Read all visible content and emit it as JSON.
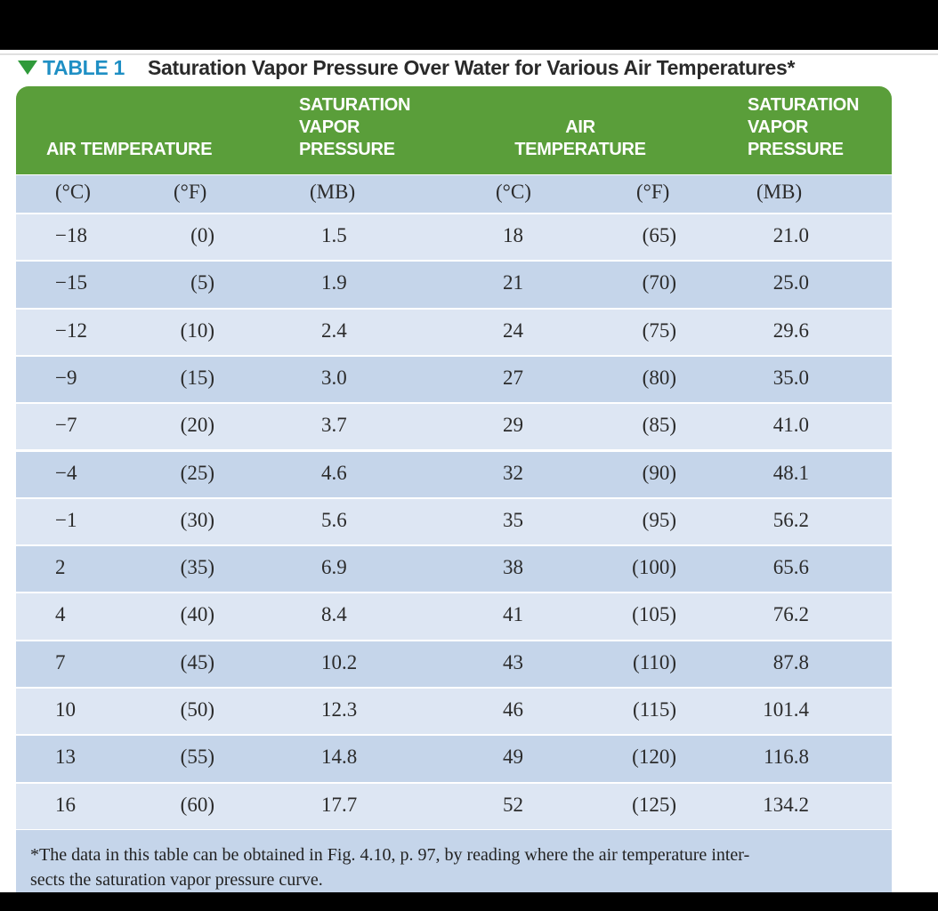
{
  "header": {
    "label": "TABLE 1",
    "title": "Saturation Vapor Pressure Over Water for Various Air Temperatures*"
  },
  "table": {
    "column_headers": [
      [
        "AIR TEMPERATURE"
      ],
      [
        "SATURATION",
        "VAPOR",
        "PRESSURE"
      ],
      [
        "AIR",
        "TEMPERATURE"
      ],
      [
        "SATURATION",
        "VAPOR",
        "PRESSURE"
      ]
    ],
    "units": [
      "(°C)",
      "(°F)",
      "(MB)",
      "(°C)",
      "(°F)",
      "(MB)"
    ],
    "rows": [
      [
        "−18",
        "(0)",
        "1.5",
        "18",
        "(65)",
        "21.0"
      ],
      [
        "−15",
        "(5)",
        "1.9",
        "21",
        "(70)",
        "25.0"
      ],
      [
        "−12",
        "(10)",
        "2.4",
        "24",
        "(75)",
        "29.6"
      ],
      [
        "−9",
        "(15)",
        "3.0",
        "27",
        "(80)",
        "35.0"
      ],
      [
        "−7",
        "(20)",
        "3.7",
        "29",
        "(85)",
        "41.0"
      ],
      [
        "−4",
        "(25)",
        "4.6",
        "32",
        "(90)",
        "48.1"
      ],
      [
        "−1",
        "(30)",
        "5.6",
        "35",
        "(95)",
        "56.2"
      ],
      [
        "2",
        "(35)",
        "6.9",
        "38",
        "(100)",
        "65.6"
      ],
      [
        "4",
        "(40)",
        "8.4",
        "41",
        "(105)",
        "76.2"
      ],
      [
        "7",
        "(45)",
        "10.2",
        "43",
        "(110)",
        "87.8"
      ],
      [
        "10",
        "(50)",
        "12.3",
        "46",
        "(115)",
        "101.4"
      ],
      [
        "13",
        "(55)",
        "14.8",
        "49",
        "(120)",
        "116.8"
      ],
      [
        "16",
        "(60)",
        "17.7",
        "52",
        "(125)",
        "134.2"
      ]
    ]
  },
  "footnote": [
    "*The data in this table can be obtained in Fig. 4.10,  p. 97, by reading where the air temperature inter-",
    "sects the saturation vapor pressure curve."
  ]
}
